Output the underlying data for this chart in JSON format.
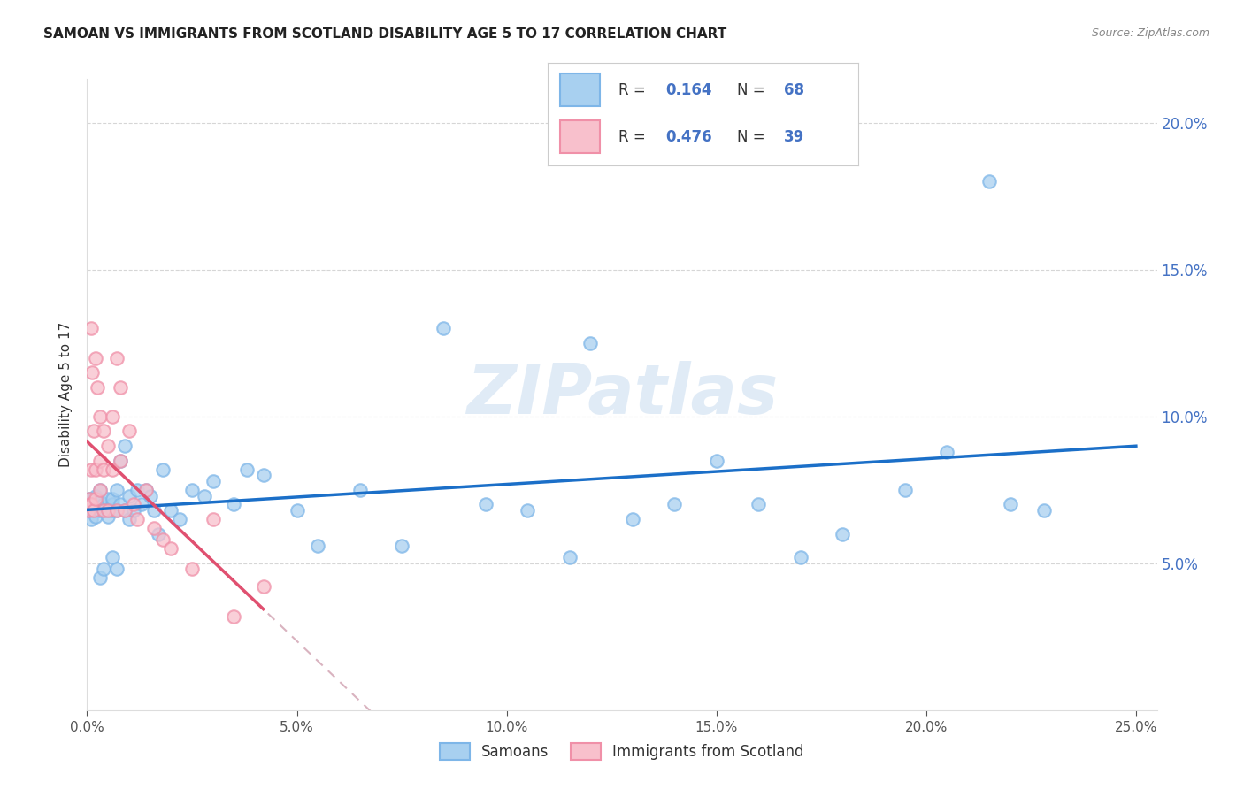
{
  "title": "SAMOAN VS IMMIGRANTS FROM SCOTLAND DISABILITY AGE 5 TO 17 CORRELATION CHART",
  "source": "Source: ZipAtlas.com",
  "ylabel": "Disability Age 5 to 17",
  "color_blue": "#A8D0F0",
  "edge_blue": "#7EB6E8",
  "color_pink": "#F8C0CC",
  "edge_pink": "#F090A8",
  "line_blue": "#1B6FC8",
  "line_pink": "#E05070",
  "line_pink_dash": "#D0A0B0",
  "watermark_color": "#C8DCF0",
  "xmin": 0.0,
  "xmax": 0.255,
  "ymin": 0.0,
  "ymax": 0.215,
  "right_yticks": [
    0.05,
    0.1,
    0.15,
    0.2
  ],
  "right_yticklabels": [
    "5.0%",
    "10.0%",
    "15.0%",
    "20.0%"
  ],
  "xticks": [
    0.0,
    0.05,
    0.1,
    0.15,
    0.2,
    0.25
  ],
  "xticklabels": [
    "0.0%",
    "5.0%",
    "10.0%",
    "15.0%",
    "20.0%",
    "25.0%"
  ],
  "legend_r1_val": "0.164",
  "legend_n1_val": "68",
  "legend_r2_val": "0.476",
  "legend_n2_val": "39",
  "legend_label1": "Samoans",
  "legend_label2": "Immigrants from Scotland",
  "samoan_x": [
    0.0005,
    0.0007,
    0.001,
    0.001,
    0.001,
    0.0015,
    0.002,
    0.002,
    0.002,
    0.003,
    0.003,
    0.003,
    0.004,
    0.004,
    0.005,
    0.005,
    0.005,
    0.006,
    0.006,
    0.006,
    0.007,
    0.007,
    0.008,
    0.008,
    0.009,
    0.009,
    0.01,
    0.01,
    0.011,
    0.012,
    0.013,
    0.014,
    0.015,
    0.016,
    0.017,
    0.018,
    0.02,
    0.022,
    0.025,
    0.028,
    0.03,
    0.035,
    0.038,
    0.042,
    0.05,
    0.055,
    0.065,
    0.075,
    0.085,
    0.095,
    0.105,
    0.115,
    0.12,
    0.13,
    0.14,
    0.15,
    0.16,
    0.17,
    0.18,
    0.195,
    0.205,
    0.215,
    0.22,
    0.228,
    0.003,
    0.004,
    0.006,
    0.007
  ],
  "samoan_y": [
    0.072,
    0.068,
    0.07,
    0.065,
    0.068,
    0.072,
    0.069,
    0.066,
    0.073,
    0.068,
    0.071,
    0.075,
    0.07,
    0.068,
    0.072,
    0.068,
    0.066,
    0.07,
    0.068,
    0.072,
    0.075,
    0.068,
    0.07,
    0.085,
    0.068,
    0.09,
    0.065,
    0.073,
    0.068,
    0.075,
    0.07,
    0.075,
    0.073,
    0.068,
    0.06,
    0.082,
    0.068,
    0.065,
    0.075,
    0.073,
    0.078,
    0.07,
    0.082,
    0.08,
    0.068,
    0.056,
    0.075,
    0.056,
    0.13,
    0.07,
    0.068,
    0.052,
    0.125,
    0.065,
    0.07,
    0.085,
    0.07,
    0.052,
    0.06,
    0.075,
    0.088,
    0.18,
    0.07,
    0.068,
    0.045,
    0.048,
    0.052,
    0.048
  ],
  "scotland_x": [
    0.0003,
    0.0005,
    0.0007,
    0.001,
    0.001,
    0.001,
    0.0012,
    0.0015,
    0.0015,
    0.002,
    0.002,
    0.002,
    0.0025,
    0.003,
    0.003,
    0.003,
    0.004,
    0.004,
    0.004,
    0.005,
    0.005,
    0.006,
    0.006,
    0.007,
    0.007,
    0.008,
    0.008,
    0.009,
    0.01,
    0.011,
    0.012,
    0.014,
    0.016,
    0.018,
    0.02,
    0.025,
    0.03,
    0.035,
    0.042
  ],
  "scotland_y": [
    0.068,
    0.072,
    0.07,
    0.13,
    0.082,
    0.07,
    0.115,
    0.095,
    0.068,
    0.12,
    0.082,
    0.072,
    0.11,
    0.1,
    0.085,
    0.075,
    0.095,
    0.068,
    0.082,
    0.09,
    0.068,
    0.1,
    0.082,
    0.12,
    0.068,
    0.11,
    0.085,
    0.068,
    0.095,
    0.07,
    0.065,
    0.075,
    0.062,
    0.058,
    0.055,
    0.048,
    0.065,
    0.032,
    0.042
  ]
}
